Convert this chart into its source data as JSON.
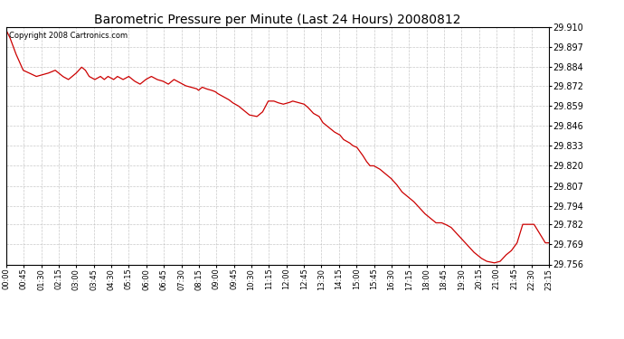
{
  "title": "Barometric Pressure per Minute (Last 24 Hours) 20080812",
  "copyright_text": "Copyright 2008 Cartronics.com",
  "background_color": "#ffffff",
  "plot_bg_color": "#ffffff",
  "line_color": "#cc0000",
  "grid_color": "#bbbbbb",
  "ylim": [
    29.756,
    29.91
  ],
  "yticks": [
    29.756,
    29.769,
    29.782,
    29.794,
    29.807,
    29.82,
    29.833,
    29.846,
    29.859,
    29.872,
    29.884,
    29.897,
    29.91
  ],
  "xtick_labels": [
    "00:00",
    "00:45",
    "01:30",
    "02:15",
    "03:00",
    "03:45",
    "04:30",
    "05:15",
    "06:00",
    "06:45",
    "07:30",
    "08:15",
    "09:00",
    "09:45",
    "10:30",
    "11:15",
    "12:00",
    "12:45",
    "13:30",
    "14:15",
    "15:00",
    "15:45",
    "16:30",
    "17:15",
    "18:00",
    "18:45",
    "19:30",
    "20:15",
    "21:00",
    "21:45",
    "22:30",
    "23:15"
  ],
  "key_times_min": [
    0,
    10,
    25,
    45,
    80,
    110,
    130,
    150,
    165,
    185,
    200,
    210,
    220,
    235,
    250,
    260,
    270,
    285,
    295,
    310,
    325,
    340,
    355,
    370,
    385,
    400,
    415,
    430,
    445,
    460,
    475,
    490,
    505,
    510,
    520,
    530,
    545,
    555,
    560,
    575,
    590,
    600,
    615,
    630,
    645,
    665,
    680,
    695,
    710,
    720,
    735,
    750,
    760,
    775,
    790,
    800,
    815,
    830,
    840,
    855,
    870,
    885,
    895,
    910,
    920,
    930,
    945,
    955,
    965,
    975,
    990,
    1005,
    1020,
    1035,
    1050,
    1065,
    1080,
    1095,
    1110,
    1125,
    1140,
    1155,
    1165,
    1180,
    1195,
    1210,
    1225,
    1240,
    1260,
    1275,
    1295,
    1310,
    1325,
    1340,
    1355,
    1370,
    1385,
    1400,
    1415,
    1430,
    1440
  ],
  "key_values": [
    29.908,
    29.903,
    29.893,
    29.882,
    29.878,
    29.88,
    29.882,
    29.878,
    29.876,
    29.88,
    29.884,
    29.882,
    29.878,
    29.876,
    29.878,
    29.876,
    29.878,
    29.876,
    29.878,
    29.876,
    29.878,
    29.875,
    29.873,
    29.876,
    29.878,
    29.876,
    29.875,
    29.873,
    29.876,
    29.874,
    29.872,
    29.871,
    29.87,
    29.869,
    29.871,
    29.87,
    29.869,
    29.868,
    29.867,
    29.865,
    29.863,
    29.861,
    29.859,
    29.856,
    29.853,
    29.852,
    29.855,
    29.862,
    29.862,
    29.861,
    29.86,
    29.861,
    29.862,
    29.861,
    29.86,
    29.858,
    29.854,
    29.852,
    29.848,
    29.845,
    29.842,
    29.84,
    29.837,
    29.835,
    29.833,
    29.832,
    29.827,
    29.823,
    29.82,
    29.82,
    29.818,
    29.815,
    29.812,
    29.808,
    29.803,
    29.8,
    29.797,
    29.793,
    29.789,
    29.786,
    29.783,
    29.783,
    29.782,
    29.78,
    29.776,
    29.772,
    29.768,
    29.764,
    29.76,
    29.758,
    29.757,
    29.758,
    29.762,
    29.765,
    29.77,
    29.782,
    29.782,
    29.782,
    29.776,
    29.77,
    29.77
  ]
}
